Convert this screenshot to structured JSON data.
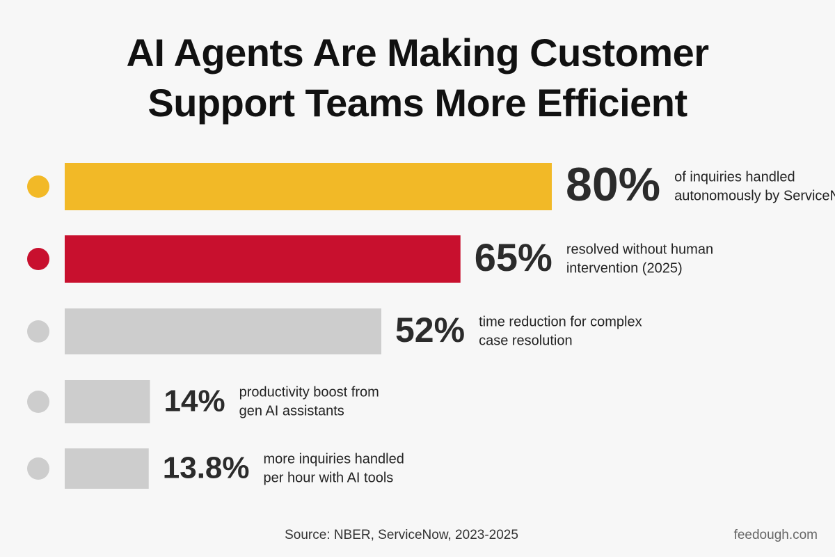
{
  "chart_data": {
    "type": "bar",
    "orientation": "horizontal",
    "title": "AI Agents Are Making Customer Support Teams More Efficient",
    "values": [
      80,
      65,
      52,
      14,
      13.8
    ],
    "value_labels": [
      "80%",
      "65%",
      "52%",
      "14%",
      "13.8%"
    ],
    "descriptions": [
      [
        "of inquiries handled",
        "autonomously by ServiceNow"
      ],
      [
        "resolved without human",
        "intervention (2025)"
      ],
      [
        "time reduction for complex",
        "case resolution"
      ],
      [
        "productivity boost from",
        "gen AI assistants"
      ],
      [
        "more inquiries handled",
        "per hour with AI tools"
      ]
    ],
    "colors": [
      "#f2b927",
      "#c8102e",
      "#cdcdcd",
      "#cdcdcd",
      "#cdcdcd"
    ],
    "source": "Source: NBER, ServiceNow, 2023-2025",
    "watermark": "feedough.com"
  }
}
